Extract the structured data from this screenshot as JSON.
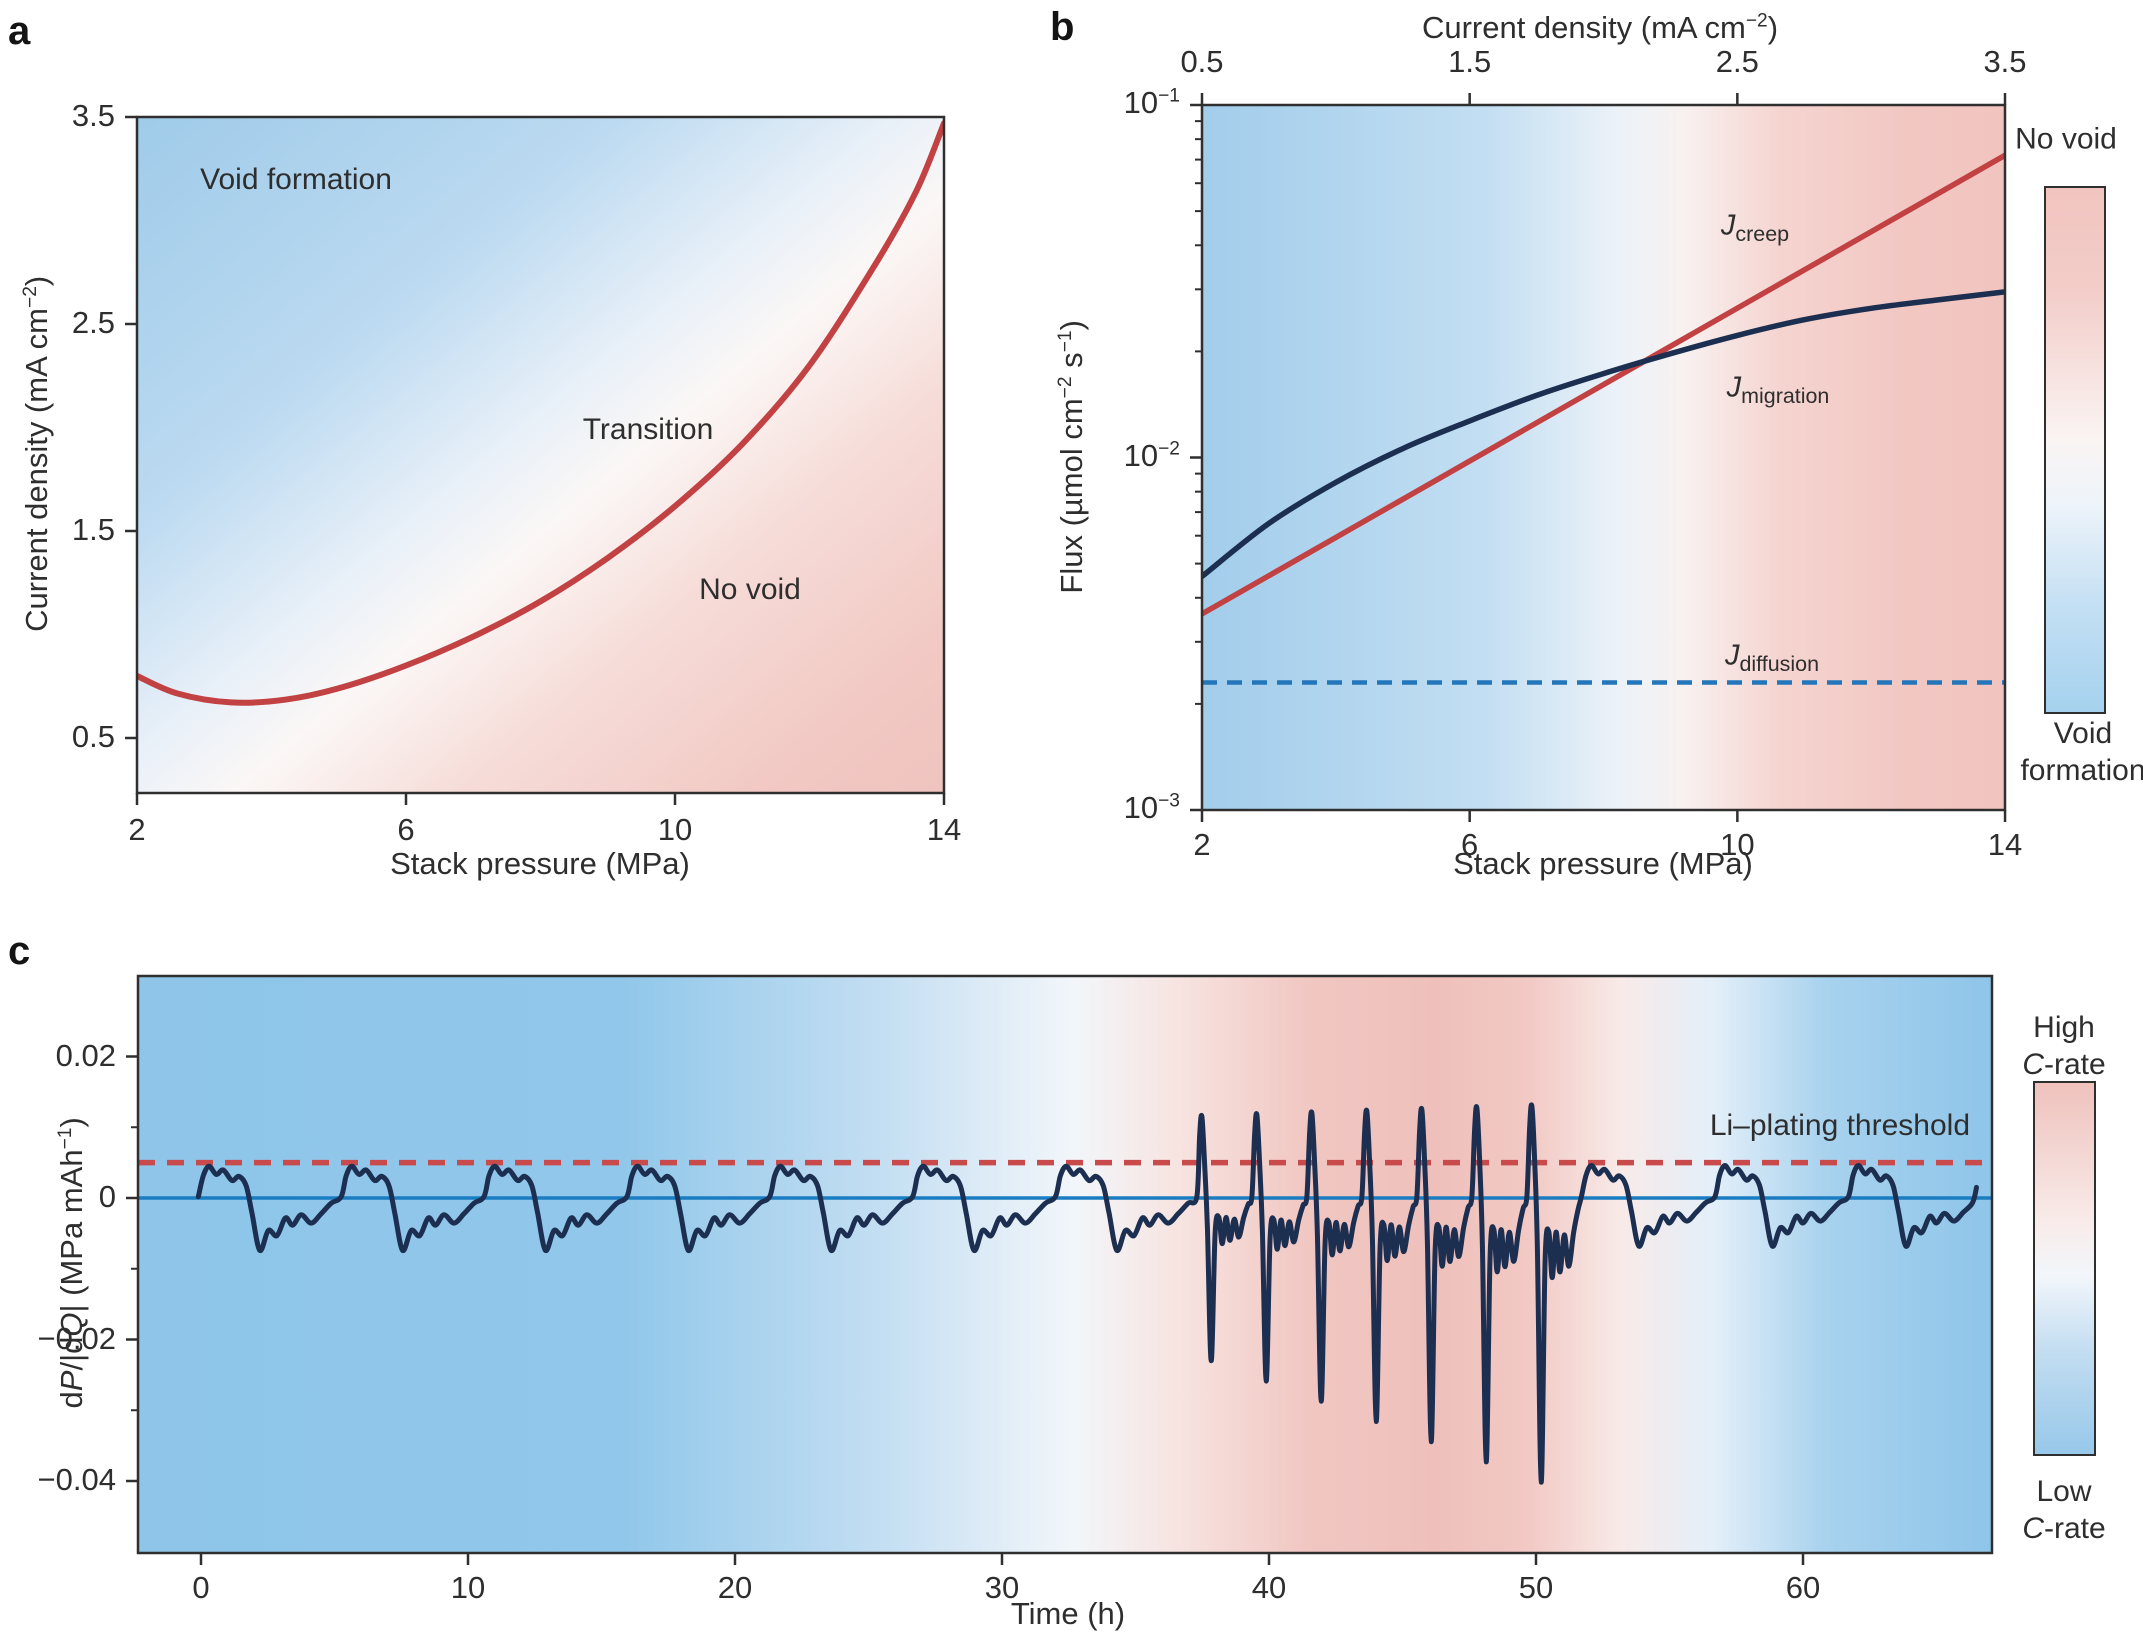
{
  "colors": {
    "accent_red": "#c24143",
    "navy": "#1c2f51",
    "zero_line_blue": "#1a7dc2",
    "diffusion_blue": "#2376ba",
    "threshold_red": "#c94a4a",
    "axis": "#2f2f2f",
    "bg_blue": "#a2cdeb",
    "bg_blue_strong": "#8ec5e9",
    "bg_pink": "#f1c4bf",
    "bg_pink_strong": "#efc0bb"
  },
  "panel_a": {
    "letter": "a",
    "xlabel": "Stack pressure (MPa)",
    "ylabel": "Current density (mA cm⁻²)",
    "annotations": {
      "void": "Void formation",
      "transition": "Transition",
      "no_void": "No void"
    }
  },
  "panel_b": {
    "letter": "b",
    "top_xlabel": "Current density (mA cm⁻²)",
    "xlabel": "Stack pressure (MPa)",
    "ylabel": "Flux (µmol cm⁻² s⁻¹)",
    "labels": {
      "creep": {
        "sym": "J",
        "sub": "creep"
      },
      "migration": {
        "sym": "J",
        "sub": "migration"
      },
      "diffusion": {
        "sym": "J",
        "sub": "diffusion"
      }
    },
    "colorbar": {
      "top": "No void",
      "bottom_lines": [
        "Void",
        "formation"
      ]
    }
  },
  "panel_c": {
    "letter": "c",
    "xlabel": "Time (h)",
    "ylabel": "dP/|dQ| (MPa mAh⁻¹)",
    "threshold_label": "Li–plating threshold",
    "colorbar": {
      "top_lines": [
        "High",
        "C-rate"
      ],
      "bottom_lines": [
        "Low",
        "C-rate"
      ]
    }
  },
  "chart_data": [
    {
      "id": "a",
      "type": "line",
      "xlabel": "Stack pressure (MPa)",
      "ylabel": "Current density (mA cm⁻²)",
      "xlim": [
        2,
        14
      ],
      "ylim": [
        0.23,
        3.5
      ],
      "xticks": [
        2,
        6,
        10,
        14
      ],
      "yticks": [
        0.5,
        1.5,
        2.5,
        3.5
      ],
      "grid": false,
      "series": [
        {
          "name": "void formation boundary",
          "color": "#c24143",
          "style": "solid",
          "x": [
            2,
            2.6,
            3.4,
            4.2,
            5,
            6,
            7,
            8,
            9,
            10,
            11,
            12,
            13,
            13.6,
            14
          ],
          "y": [
            0.8,
            0.715,
            0.672,
            0.685,
            0.74,
            0.85,
            0.99,
            1.16,
            1.37,
            1.62,
            1.92,
            2.3,
            2.8,
            3.15,
            3.47
          ]
        }
      ],
      "annotations": [
        {
          "text": "Void formation",
          "x": 4.36,
          "y": 3.2
        },
        {
          "text": "Transition",
          "x": 9.6,
          "y": 1.99
        },
        {
          "text": "No void",
          "x": 11.1,
          "y": 1.22
        }
      ],
      "background": "diagonal gradient: blue (void formation, top-left) to pink (no void, bottom-right)"
    },
    {
      "id": "b",
      "type": "line",
      "yscale": "log",
      "xlabel": "Stack pressure (MPa)",
      "ylabel": "Flux (µmol cm⁻² s⁻¹)",
      "top_axis": {
        "label": "Current density (mA cm⁻²)",
        "ticks": [
          0.5,
          1.5,
          2.5,
          3.5
        ]
      },
      "xlim": [
        2,
        14
      ],
      "ylim": [
        0.001,
        0.1
      ],
      "xticks": [
        2,
        6,
        10,
        14
      ],
      "ytick_labels": [
        "10⁻¹",
        "10⁻²",
        "10⁻³"
      ],
      "series": [
        {
          "name": "J_creep",
          "color": "#c24143",
          "style": "solid",
          "x": [
            2,
            14
          ],
          "y": [
            0.0036,
            0.072
          ]
        },
        {
          "name": "J_migration",
          "color": "#1c2f51",
          "style": "solid",
          "x": [
            2,
            3,
            4,
            5,
            6,
            7,
            8,
            9,
            10,
            11,
            12,
            13,
            14
          ],
          "y": [
            0.0046,
            0.0065,
            0.0085,
            0.0106,
            0.0127,
            0.015,
            0.0173,
            0.0197,
            0.0222,
            0.0246,
            0.0265,
            0.028,
            0.0295
          ]
        },
        {
          "name": "J_diffusion",
          "color": "#2376ba",
          "style": "dashed",
          "x": [
            2,
            14
          ],
          "y": [
            0.0023,
            0.0023
          ]
        }
      ],
      "colorbar": {
        "top_label": "No void",
        "bottom_label": "Void formation"
      },
      "background": "horizontal gradient: blue (left) to pink (right)"
    },
    {
      "id": "c",
      "type": "line",
      "xlabel": "Time (h)",
      "ylabel": "dP/|dQ| (MPa mAh⁻¹)",
      "xlim": [
        -2.4,
        67.1
      ],
      "ylim": [
        -0.05,
        0.031
      ],
      "xticks": [
        0,
        10,
        20,
        30,
        40,
        50,
        60
      ],
      "yticks": [
        0.02,
        0,
        -0.02,
        -0.04
      ],
      "minor_yticks": [
        0.01,
        -0.01,
        -0.03
      ],
      "zero_line": 0,
      "threshold": {
        "label": "Li–plating threshold",
        "value": 0.005,
        "color": "#c94a4a",
        "style": "dashed"
      },
      "trace": {
        "name": "pressure derivative signal",
        "color": "#1c2f51",
        "start": -0.1,
        "end": 66.5,
        "segments": [
          {
            "type": "calm",
            "from": -0.1,
            "to": 37.3,
            "period": 5.35,
            "pos": 0.0045,
            "neg": 0.0074
          },
          {
            "type": "storm",
            "from": 37.3,
            "to": 51.7,
            "period": 2.06,
            "pos_start": 0.0115,
            "pos_end": 0.0132,
            "neg_start": 0.023,
            "neg_end": 0.043
          },
          {
            "type": "calm",
            "from": 51.7,
            "to": 66.5,
            "period": 5.0,
            "pos": 0.0046,
            "neg": 0.0068
          }
        ],
        "shapes": {
          "calm": [
            [
              0,
              0.04
            ],
            [
              0.035,
              0.7
            ],
            [
              0.075,
              1
            ],
            [
              0.125,
              0.74
            ],
            [
              0.175,
              0.88
            ],
            [
              0.235,
              0.55
            ],
            [
              0.285,
              0.68
            ],
            [
              0.335,
              0.38
            ],
            [
              0.375,
              -0.28
            ],
            [
              0.43,
              -1
            ],
            [
              0.49,
              -0.62
            ],
            [
              0.55,
              -0.72
            ],
            [
              0.61,
              -0.38
            ],
            [
              0.66,
              -0.52
            ],
            [
              0.72,
              -0.32
            ],
            [
              0.79,
              -0.48
            ],
            [
              0.86,
              -0.3
            ],
            [
              0.93,
              -0.1
            ]
          ],
          "storm": [
            [
              0,
              0.02
            ],
            [
              0.05,
              0.78
            ],
            [
              0.09,
              1
            ],
            [
              0.14,
              0.42
            ],
            [
              0.19,
              -0.18
            ],
            [
              0.26,
              -1
            ],
            [
              0.33,
              -0.22
            ],
            [
              0.4,
              -0.12
            ],
            [
              0.46,
              -0.28
            ],
            [
              0.53,
              -0.12
            ],
            [
              0.6,
              -0.26
            ],
            [
              0.68,
              -0.13
            ],
            [
              0.76,
              -0.24
            ],
            [
              0.85,
              -0.12
            ],
            [
              0.93,
              -0.04
            ]
          ]
        }
      },
      "background_timeline": "blue (low C-rate) turning pink (high C-rate) between ~36-52 h, then back to blue",
      "colorbar": {
        "top_label": "High C-rate",
        "bottom_label": "Low C-rate"
      }
    }
  ]
}
